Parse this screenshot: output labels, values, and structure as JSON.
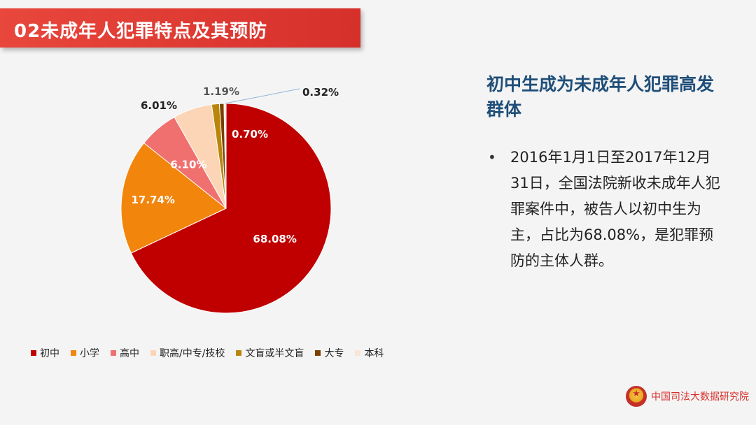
{
  "header": {
    "title": "02未成年人犯罪特点及其预防"
  },
  "chart_data": {
    "type": "pie",
    "slices": [
      {
        "name": "初中",
        "value": 68.08,
        "label": "68.08%",
        "color": "#c00000"
      },
      {
        "name": "小学",
        "value": 17.74,
        "label": "17.74%",
        "color": "#f2850c"
      },
      {
        "name": "高中",
        "value": 6.1,
        "label": "6.10%",
        "color": "#f07070"
      },
      {
        "name": "职高/中专/技校",
        "value": 6.01,
        "label": "6.01%",
        "color": "#fbd5b5"
      },
      {
        "name": "文盲或半文盲",
        "value": 1.19,
        "label": "1.19%",
        "color": "#b8860b"
      },
      {
        "name": "大专",
        "value": 0.7,
        "label": "0.70%",
        "color": "#7b3f00"
      },
      {
        "name": "本科",
        "value": 0.32,
        "label": "0.32%",
        "color": "#fbe4d5"
      }
    ],
    "legend_position": "bottom"
  },
  "panel": {
    "heading": "初中生成为未成年人犯罪高发群体",
    "bullet": "•",
    "body": "2016年1月1日至2017年12月31日，全国法院新收未成年人犯罪案件中，被告人以初中生为主，占比为68.08%，是犯罪预防的主体人群。"
  },
  "footer": {
    "org": "中国司法大数据研究院"
  }
}
